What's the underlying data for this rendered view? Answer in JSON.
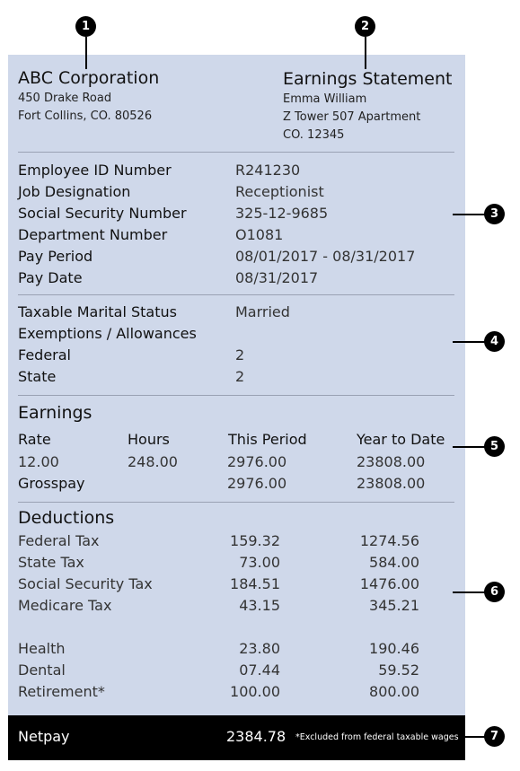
{
  "markers": [
    "1",
    "2",
    "3",
    "4",
    "5",
    "6",
    "7"
  ],
  "company": {
    "name": "ABC Corporation",
    "address1": "450 Drake Road",
    "address2": "Fort Collins, CO. 80526"
  },
  "statement": {
    "title": "Earnings Statement",
    "employee_name": "Emma William",
    "address1": "Z Tower 507 Apartment",
    "address2": "CO. 12345"
  },
  "employee_info": [
    {
      "label": "Employee ID Number",
      "value": "R241230"
    },
    {
      "label": "Job Designation",
      "value": "Receptionist"
    },
    {
      "label": "Social Security Number",
      "value": "325-12-9685"
    },
    {
      "label": "Department Number",
      "value": "O1081"
    },
    {
      "label": "Pay Period",
      "value": "08/01/2017 - 08/31/2017"
    },
    {
      "label": "Pay Date",
      "value": "08/31/2017"
    }
  ],
  "tax_status": {
    "marital_label": "Taxable Marital Status",
    "marital_value": "Married",
    "exemptions_label": "Exemptions / Allowances",
    "federal_label": "Federal",
    "federal_value": "2",
    "state_label": "State",
    "state_value": "2"
  },
  "earnings": {
    "title": "Earnings",
    "headers": [
      "Rate",
      "Hours",
      "This Period",
      "Year to Date"
    ],
    "row": [
      "12.00",
      "248.00",
      "2976.00",
      "23808.00"
    ],
    "grosspay_label": "Grosspay",
    "grosspay_period": "2976.00",
    "grosspay_ytd": "23808.00"
  },
  "deductions": {
    "title": "Deductions",
    "items": [
      {
        "label": "Federal Tax",
        "period": "159.32",
        "ytd": "1274.56"
      },
      {
        "label": "State Tax",
        "period": "73.00",
        "ytd": "584.00"
      },
      {
        "label": "Social Security Tax",
        "period": "184.51",
        "ytd": "1476.00"
      },
      {
        "label": "Medicare Tax",
        "period": "43.15",
        "ytd": "345.21"
      },
      {
        "label": "Health",
        "period": "23.80",
        "ytd": "190.46"
      },
      {
        "label": "Dental",
        "period": "07.44",
        "ytd": "59.52"
      },
      {
        "label": "Retirement*",
        "period": "100.00",
        "ytd": "800.00"
      }
    ]
  },
  "netpay": {
    "label": "Netpay",
    "amount": "2384.78",
    "footnote": "*Excluded from federal taxable wages"
  }
}
